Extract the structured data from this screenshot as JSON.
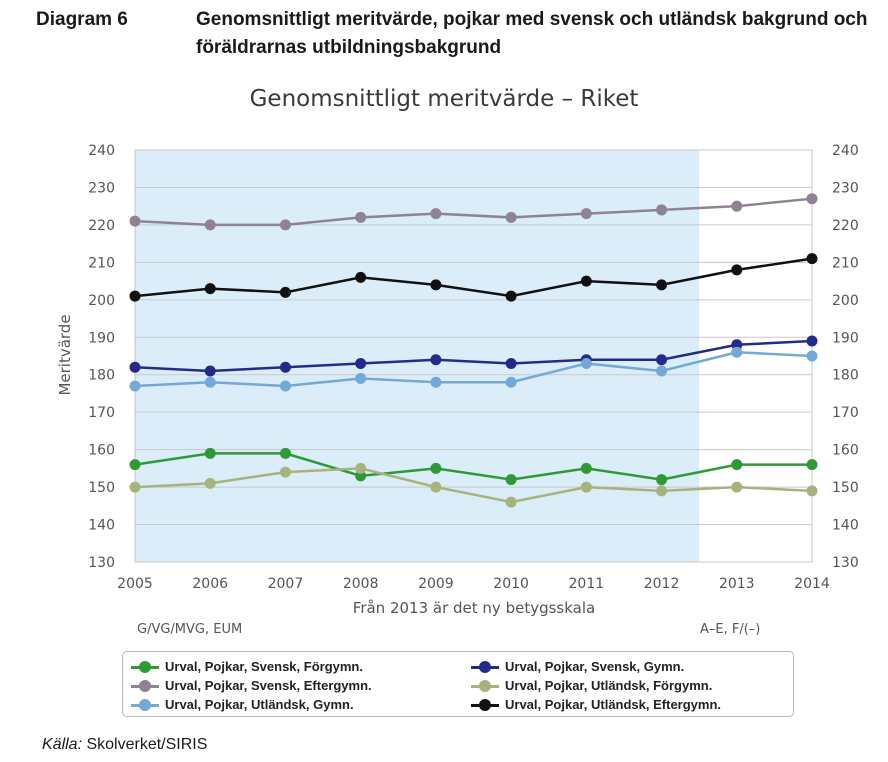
{
  "header": {
    "label": "Diagram 6",
    "title": "Genomsnittligt meritvärde, pojkar med svensk och utländsk bakgrund och föräldrarnas utbildningsbakgrund"
  },
  "source": {
    "prefix": "Källa:",
    "text": "Skolverket/SIRIS"
  },
  "chart_data": {
    "type": "line",
    "title": "Genomsnittligt meritvärde – Riket",
    "ylabel": "Meritvärde",
    "xlabel": "Från 2013 är det ny betygsskala",
    "note_left": "G/VG/MVG, EUM",
    "note_right": "A–E, F/(–)",
    "ylim": [
      130,
      240
    ],
    "yticks": [
      130,
      140,
      150,
      160,
      170,
      180,
      190,
      200,
      210,
      220,
      230,
      240
    ],
    "grid": true,
    "legend_position": "bottom",
    "shaded_period": [
      "2005",
      "2012"
    ],
    "categories": [
      "2005",
      "2006",
      "2007",
      "2008",
      "2009",
      "2010",
      "2011",
      "2012",
      "2013",
      "2014"
    ],
    "series": [
      {
        "name": "Urval, Pojkar, Svensk, Förgymn.",
        "color": "#2e9a35",
        "values": [
          156,
          159,
          159,
          153,
          155,
          152,
          155,
          152,
          156,
          156
        ]
      },
      {
        "name": "Urval, Pojkar, Svensk, Gymn.",
        "color": "#232b8a",
        "values": [
          182,
          181,
          182,
          183,
          184,
          183,
          184,
          184,
          188,
          189
        ]
      },
      {
        "name": "Urval, Pojkar, Svensk, Eftergymn.",
        "color": "#8f8293",
        "values": [
          221,
          220,
          220,
          222,
          223,
          222,
          223,
          224,
          225,
          227
        ]
      },
      {
        "name": "Urval, Pojkar, Utländsk, Förgymn.",
        "color": "#a6b47c",
        "values": [
          150,
          151,
          154,
          155,
          150,
          146,
          150,
          149,
          150,
          149
        ]
      },
      {
        "name": "Urval, Pojkar, Utländsk, Gymn.",
        "color": "#74a8d6",
        "values": [
          177,
          178,
          177,
          179,
          178,
          178,
          183,
          181,
          186,
          185
        ]
      },
      {
        "name": "Urval, Pojkar, Utländsk, Eftergymn.",
        "color": "#111111",
        "values": [
          201,
          203,
          202,
          206,
          204,
          201,
          205,
          204,
          208,
          211
        ]
      }
    ],
    "legend_order": [
      0,
      1,
      2,
      3,
      4,
      5
    ]
  }
}
